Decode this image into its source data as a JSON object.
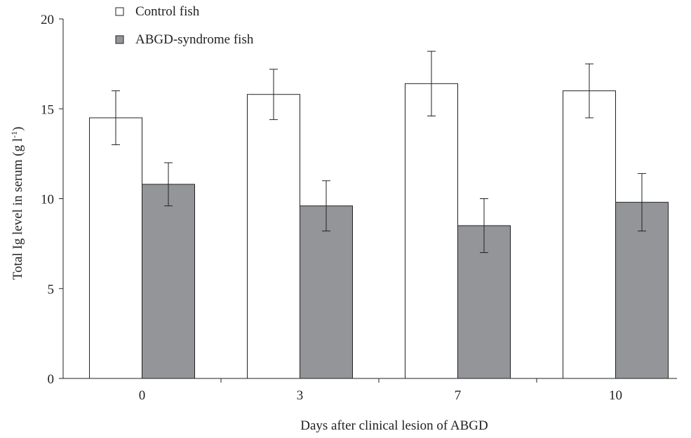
{
  "chart_data": {
    "type": "bar",
    "categories": [
      "0",
      "3",
      "7",
      "10"
    ],
    "series": [
      {
        "name": "Control fish",
        "values": [
          14.5,
          15.8,
          16.4,
          16.0
        ],
        "errors": [
          1.5,
          1.4,
          1.8,
          1.5
        ],
        "color": "#ffffff"
      },
      {
        "name": "ABGD-syndrome fish",
        "values": [
          10.8,
          9.6,
          8.5,
          9.8
        ],
        "errors": [
          1.2,
          1.4,
          1.5,
          1.6
        ],
        "color": "#939598"
      }
    ],
    "xlabel": "Days after clinical lesion of ABGD",
    "ylabel_main": "Total Ig level in serum (g l",
    "ylabel_sup": "-1",
    "ylabel_end": ")",
    "ylim": [
      0,
      20
    ],
    "yticks": [
      "0",
      "5",
      "10",
      "15",
      "20"
    ],
    "grid": false,
    "legend_position": "top-left"
  }
}
